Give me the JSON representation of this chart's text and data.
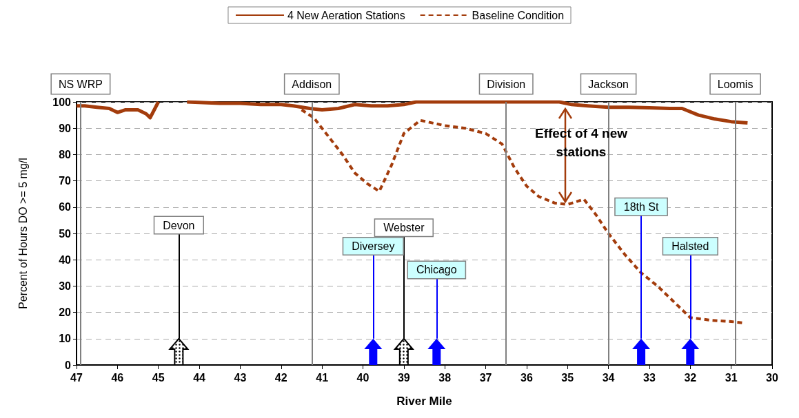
{
  "chart_data": {
    "type": "line",
    "xlabel": "River Mile",
    "ylabel": "Percent of Hours DO >= 5 mg/l",
    "xlim": [
      47,
      30
    ],
    "xticks": [
      47,
      46,
      45,
      44,
      43,
      42,
      41,
      40,
      39,
      38,
      37,
      36,
      35,
      34,
      33,
      32,
      31,
      30
    ],
    "ylim": [
      0,
      100
    ],
    "yticks": [
      0,
      10,
      20,
      30,
      40,
      50,
      60,
      70,
      80,
      90,
      100
    ],
    "grid": "y",
    "legend": "top",
    "marker": "none",
    "series": [
      {
        "name": "4 New Aeration Stations",
        "color": "#a33c0c",
        "line_style": "solid",
        "x": [
          47,
          46.8,
          46.5,
          46.2,
          46,
          45.8,
          45.5,
          45.3,
          45.2,
          45.0,
          44.7,
          44.3,
          43.5,
          43,
          42.5,
          42,
          41.7,
          41.3,
          41,
          40.6,
          40.2,
          39.8,
          39.4,
          39,
          38.7,
          37,
          36,
          35.2,
          34.9,
          34.5,
          34,
          33.5,
          33,
          32.5,
          32.2,
          31.8,
          31.4,
          31,
          30.6
        ],
        "values": [
          98.5,
          98.5,
          98,
          97.5,
          96,
          97,
          97,
          95.5,
          94,
          100,
          null,
          100,
          99.5,
          99.5,
          99,
          99,
          98.5,
          97.5,
          97,
          97.5,
          99,
          98.5,
          98.5,
          99,
          100,
          100,
          100,
          100,
          99,
          98.5,
          98,
          98,
          97.8,
          97.5,
          97.5,
          95,
          93.5,
          92.5,
          92
        ]
      },
      {
        "name": "Baseline Condition",
        "color": "#a33c0c",
        "line_style": "dashed",
        "x": [
          41.5,
          41.2,
          40.8,
          40.5,
          40.2,
          39.9,
          39.6,
          39.3,
          39,
          38.6,
          38,
          37.5,
          37,
          36.6,
          36.3,
          36,
          35.7,
          35.3,
          35,
          34.6,
          34.3,
          34,
          33.6,
          33.2,
          32.8,
          32.4,
          32,
          31.5,
          31,
          30.7
        ],
        "values": [
          97,
          94,
          86,
          80,
          73,
          69,
          66,
          76,
          88,
          93,
          91,
          90,
          88,
          84,
          75,
          68,
          64,
          61.5,
          61,
          63,
          57,
          50,
          42,
          35,
          30,
          24,
          18,
          17,
          16.5,
          16
        ]
      }
    ],
    "ref_lines": [
      {
        "axis": "x",
        "value": 46.9,
        "label": "NS WRP"
      },
      {
        "axis": "x",
        "value": 41.25,
        "label": "Addison"
      },
      {
        "axis": "x",
        "value": 36.5,
        "label": "Division"
      },
      {
        "axis": "x",
        "value": 34.0,
        "label": "Jackson"
      },
      {
        "axis": "x",
        "value": 30.9,
        "label": "Loomis"
      },
      {
        "axis": "x",
        "value": 44.5,
        "label": "Devon",
        "color": "#000000"
      },
      {
        "axis": "x",
        "value": 39.75,
        "label": "Diversey",
        "color": "#0000ff"
      },
      {
        "axis": "x",
        "value": 39.0,
        "label": "Webster",
        "color": "#000000"
      },
      {
        "axis": "x",
        "value": 38.2,
        "label": "Chicago",
        "color": "#0000ff"
      },
      {
        "axis": "x",
        "value": 33.2,
        "label": "18th St",
        "color": "#0000ff"
      },
      {
        "axis": "x",
        "value": 32.0,
        "label": "Halsted",
        "color": "#0000ff"
      }
    ],
    "annotations": [
      "Effect of 4 new stations"
    ]
  }
}
